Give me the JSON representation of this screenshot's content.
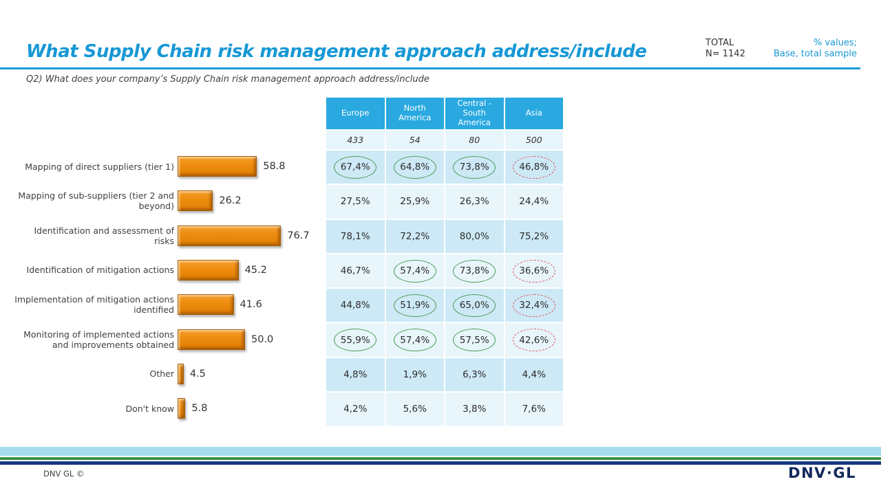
{
  "header": {
    "title": "What Supply Chain risk management approach address/include",
    "total_label": "TOTAL",
    "total_n": "N= 1142",
    "note_line1": "% values;",
    "note_line2": "Base, total sample",
    "subtitle": "Q2) What does your company’s Supply Chain risk management approach address/include"
  },
  "chart_data": {
    "type": "bar",
    "orientation": "horizontal",
    "title": "",
    "xlabel": "",
    "ylabel": "",
    "xlim": [
      0,
      85
    ],
    "categories": [
      "Mapping of direct suppliers (tier 1)",
      "Mapping of sub-suppliers (tier 2 and beyond)",
      "Identification and assessment of risks",
      "Identification of mitigation actions",
      "Implementation of mitigation actions identified",
      "Monitoring of implemented actions and improvements obtained",
      "Other",
      "Don't know"
    ],
    "values": [
      58.8,
      26.2,
      76.7,
      45.2,
      41.6,
      50.0,
      4.5,
      5.8
    ],
    "value_labels": [
      "58.8",
      "26.2",
      "76.7",
      "45.2",
      "41.6",
      "50.0",
      "4.5",
      "5.8"
    ],
    "bar_color": "#ED8B0E",
    "grid": false,
    "legend": false
  },
  "table": {
    "columns": [
      "Europe",
      "North America",
      "Central - South America",
      "Asia"
    ],
    "base_values": [
      "433",
      "54",
      "80",
      "500"
    ],
    "rows": [
      {
        "cells": [
          {
            "value": "67,4%",
            "circle": "green"
          },
          {
            "value": "64,8%",
            "circle": "green"
          },
          {
            "value": "73,8%",
            "circle": "green"
          },
          {
            "value": "46,8%",
            "circle": "red"
          }
        ]
      },
      {
        "cells": [
          {
            "value": "27,5%",
            "circle": "none"
          },
          {
            "value": "25,9%",
            "circle": "none"
          },
          {
            "value": "26,3%",
            "circle": "none"
          },
          {
            "value": "24,4%",
            "circle": "none"
          }
        ]
      },
      {
        "cells": [
          {
            "value": "78,1%",
            "circle": "none"
          },
          {
            "value": "72,2%",
            "circle": "none"
          },
          {
            "value": "80,0%",
            "circle": "none"
          },
          {
            "value": "75,2%",
            "circle": "none"
          }
        ]
      },
      {
        "cells": [
          {
            "value": "46,7%",
            "circle": "none"
          },
          {
            "value": "57,4%",
            "circle": "green"
          },
          {
            "value": "73,8%",
            "circle": "green"
          },
          {
            "value": "36,6%",
            "circle": "red"
          }
        ]
      },
      {
        "cells": [
          {
            "value": "44,8%",
            "circle": "none"
          },
          {
            "value": "51,9%",
            "circle": "green"
          },
          {
            "value": "65,0%",
            "circle": "green"
          },
          {
            "value": "32,4%",
            "circle": "red"
          }
        ]
      },
      {
        "cells": [
          {
            "value": "55,9%",
            "circle": "green"
          },
          {
            "value": "57,4%",
            "circle": "green"
          },
          {
            "value": "57,5%",
            "circle": "green"
          },
          {
            "value": "42,6%",
            "circle": "red"
          }
        ]
      },
      {
        "cells": [
          {
            "value": "4,8%",
            "circle": "none"
          },
          {
            "value": "1,9%",
            "circle": "none"
          },
          {
            "value": "6,3%",
            "circle": "none"
          },
          {
            "value": "4,4%",
            "circle": "none"
          }
        ]
      },
      {
        "cells": [
          {
            "value": "4,2%",
            "circle": "none"
          },
          {
            "value": "5,6%",
            "circle": "none"
          },
          {
            "value": "3,8%",
            "circle": "none"
          },
          {
            "value": "7,6%",
            "circle": "none"
          }
        ]
      }
    ]
  },
  "footer": {
    "copyright": "DNV GL ©",
    "logo": "DNV·GL"
  },
  "colors": {
    "title_blue": "#1798D5",
    "header_blue": "#29A9E0",
    "row_dark": "#CDE9F6",
    "row_light": "#E8F5FB",
    "bar_orange": "#ED8B0E",
    "circle_green": "#4D9B57",
    "circle_red": "#DD5555",
    "stripe_lightblue": "#A6DBEF",
    "stripe_green": "#3F9144",
    "stripe_navy": "#16377D",
    "logo_navy": "#13295C"
  }
}
